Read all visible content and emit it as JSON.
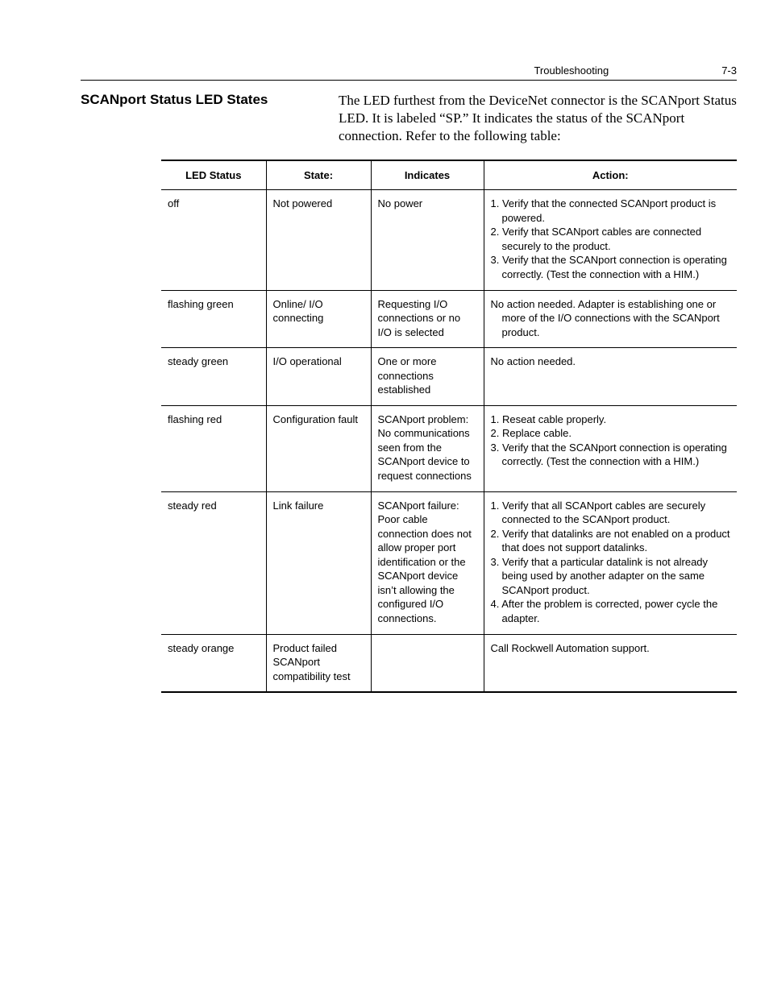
{
  "header": {
    "chapter": "Troubleshooting",
    "page_num": "7-3"
  },
  "section": {
    "title": "SCANport Status LED States",
    "intro": "The LED furthest from the DeviceNet connector is the SCANport Status LED. It is labeled “SP.” It indicates the status of the SCANport connection. Refer to the following table:"
  },
  "table": {
    "columns": [
      "LED Status",
      "State:",
      "Indicates",
      "Action:"
    ],
    "rows": [
      {
        "led": "off",
        "state": "Not powered",
        "indicates": "No power",
        "actions": [
          "1. Verify that the connected SCANport product is powered.",
          "2. Verify that SCANport cables are connected securely to the product.",
          "3. Verify that the SCANport connection is operating correctly. (Test the connection with a HIM.)"
        ]
      },
      {
        "led": "flashing green",
        "state": "Online/ I/O connecting",
        "indicates": "Requesting I/O connections or no I/O is selected",
        "actions": [
          "No action needed. Adapter is establishing one or more of the I/O connections with the SCANport product."
        ]
      },
      {
        "led": "steady green",
        "state": "I/O operational",
        "indicates": "One or more connections established",
        "actions": [
          "No action needed."
        ]
      },
      {
        "led": "flashing red",
        "state": "Configuration fault",
        "indicates": "SCANport problem: No communications seen from the SCANport device to request connections",
        "actions": [
          "1. Reseat cable properly.",
          "2. Replace cable.",
          "3. Verify that the SCANport connection is operating correctly. (Test the connection with a HIM.)"
        ]
      },
      {
        "led": "steady red",
        "state": "Link failure",
        "indicates": "SCANport failure: Poor cable connection does not allow proper port identification or the SCANport device isn’t allowing the configured I/O connections.",
        "actions": [
          "1. Verify that all SCANport cables are securely connected to the SCANport product.",
          "2. Verify that datalinks are not enabled on a product that does not support datalinks.",
          "3. Verify that a particular datalink is not already being used by another adapter on the same SCANport product.",
          "4. After the problem is corrected, power cycle the adapter."
        ]
      },
      {
        "led": "steady orange",
        "state": "Product failed SCANport compatibility test",
        "indicates": "",
        "actions": [
          "Call Rockwell Automation support."
        ]
      }
    ]
  }
}
